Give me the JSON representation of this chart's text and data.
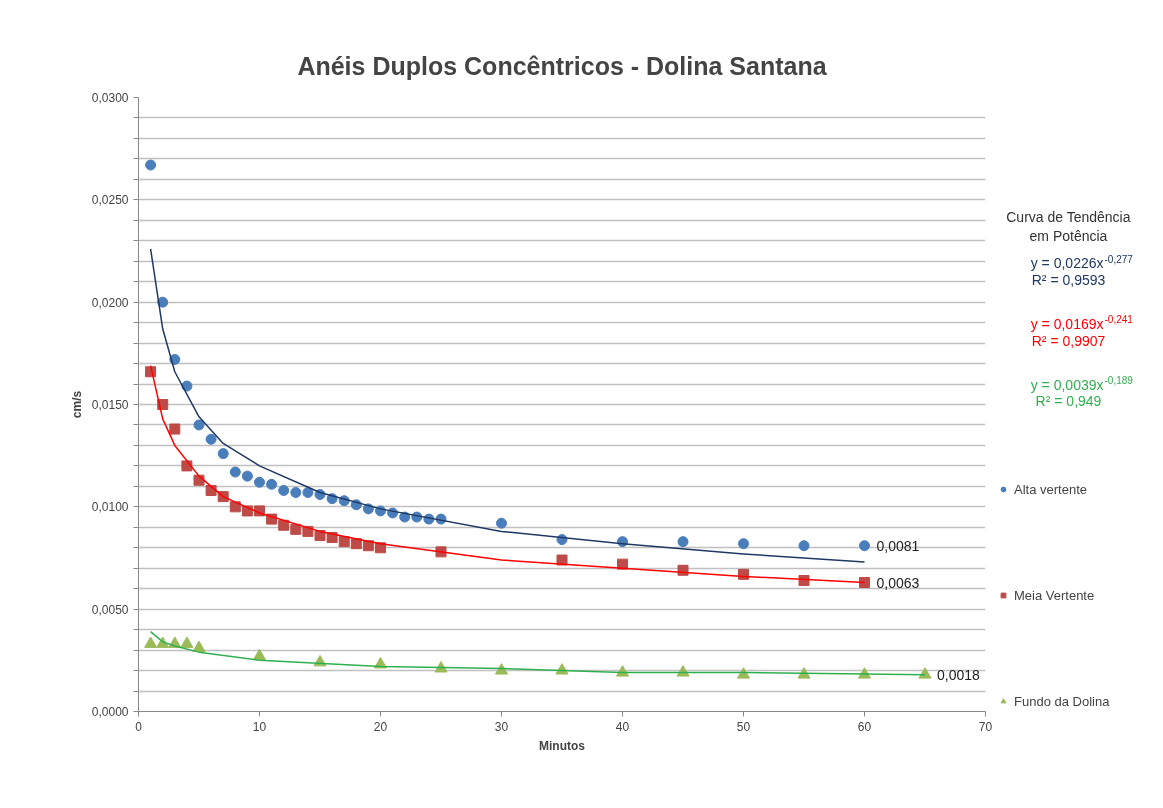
{
  "chart_data": {
    "type": "scatter",
    "title": "Anéis Duplos Concêntricos - Dolina Santana",
    "xlabel": "Minutos",
    "ylabel": "cm/s",
    "xlim": [
      0,
      70
    ],
    "ylim": [
      0,
      0.03
    ],
    "xticks": [
      0,
      10,
      20,
      30,
      40,
      50,
      60,
      70
    ],
    "yticks": [
      {
        "value": 0,
        "label": "0,0000"
      },
      {
        "value": 0.001,
        "label": null
      },
      {
        "value": 0.002,
        "label": null
      },
      {
        "value": 0.003,
        "label": null
      },
      {
        "value": 0.004,
        "label": null
      },
      {
        "value": 0.005,
        "label": "0,0050"
      },
      {
        "value": 0.006,
        "label": null
      },
      {
        "value": 0.007,
        "label": null
      },
      {
        "value": 0.008,
        "label": null
      },
      {
        "value": 0.009,
        "label": null
      },
      {
        "value": 0.01,
        "label": "0,0100"
      },
      {
        "value": 0.011,
        "label": null
      },
      {
        "value": 0.012,
        "label": null
      },
      {
        "value": 0.013,
        "label": null
      },
      {
        "value": 0.014,
        "label": null
      },
      {
        "value": 0.015,
        "label": "0,0150"
      },
      {
        "value": 0.016,
        "label": null
      },
      {
        "value": 0.017,
        "label": null
      },
      {
        "value": 0.018,
        "label": null
      },
      {
        "value": 0.019,
        "label": null
      },
      {
        "value": 0.02,
        "label": "0,0200"
      },
      {
        "value": 0.021,
        "label": null
      },
      {
        "value": 0.022,
        "label": null
      },
      {
        "value": 0.023,
        "label": null
      },
      {
        "value": 0.024,
        "label": null
      },
      {
        "value": 0.025,
        "label": "0,0250"
      },
      {
        "value": 0.026,
        "label": null
      },
      {
        "value": 0.027,
        "label": null
      },
      {
        "value": 0.028,
        "label": null
      },
      {
        "value": 0.029,
        "label": null
      },
      {
        "value": 0.03,
        "label": "0,0300"
      }
    ],
    "grid": "y",
    "legend": "right",
    "series": [
      {
        "name": "Alta vertente",
        "type": "scatter",
        "marker": "circle",
        "color": "#4a7ebb",
        "x": [
          1,
          2,
          3,
          4,
          5,
          6,
          7,
          8,
          9,
          10,
          11,
          12,
          13,
          14,
          15,
          16,
          17,
          18,
          19,
          20,
          21,
          22,
          23,
          24,
          25,
          30,
          35,
          40,
          45,
          50,
          55,
          60
        ],
        "values": [
          0.0267,
          0.02,
          0.0172,
          0.0159,
          0.014,
          0.0133,
          0.0126,
          0.0117,
          0.0115,
          0.0112,
          0.0111,
          0.0108,
          0.0107,
          0.0107,
          0.0106,
          0.0104,
          0.0103,
          0.0101,
          0.0099,
          0.0098,
          0.0097,
          0.0095,
          0.0095,
          0.0094,
          0.0094,
          0.0092,
          0.0084,
          0.0083,
          0.0083,
          0.0082,
          0.0081,
          0.0081
        ],
        "value_labels": [
          null,
          null,
          null,
          null,
          null,
          null,
          null,
          null,
          null,
          null,
          null,
          null,
          null,
          null,
          null,
          null,
          null,
          null,
          null,
          null,
          null,
          null,
          null,
          null,
          null,
          null,
          null,
          null,
          null,
          null,
          null,
          "0,0081"
        ]
      },
      {
        "name": "Meia Vertente",
        "type": "scatter",
        "marker": "square",
        "color": "#be4b48",
        "x": [
          1,
          2,
          3,
          4,
          5,
          6,
          7,
          8,
          9,
          10,
          11,
          12,
          13,
          14,
          15,
          16,
          17,
          18,
          19,
          20,
          25,
          35,
          40,
          45,
          50,
          55,
          60
        ],
        "values": [
          0.0166,
          0.015,
          0.0138,
          0.012,
          0.0113,
          0.0108,
          0.0105,
          0.01,
          0.0098,
          0.0098,
          0.0094,
          0.0091,
          0.0089,
          0.0088,
          0.0086,
          0.0085,
          0.0083,
          0.0082,
          0.0081,
          0.008,
          0.0078,
          0.0074,
          0.0072,
          0.0069,
          0.0067,
          0.0064,
          0.0063
        ],
        "value_labels": [
          null,
          null,
          null,
          null,
          null,
          null,
          null,
          null,
          null,
          null,
          null,
          null,
          null,
          null,
          null,
          null,
          null,
          null,
          null,
          null,
          null,
          null,
          null,
          null,
          null,
          null,
          "0,0063"
        ]
      },
      {
        "name": "Fundo da Dolina",
        "type": "scatter",
        "marker": "triangle",
        "color": "#9bbb59",
        "x": [
          1,
          2,
          3,
          4,
          5,
          10,
          15,
          20,
          25,
          30,
          35,
          40,
          45,
          50,
          55,
          60,
          65
        ],
        "values": [
          0.0033,
          0.0033,
          0.0033,
          0.0033,
          0.0031,
          0.0027,
          0.0024,
          0.0023,
          0.0021,
          0.002,
          0.002,
          0.0019,
          0.0019,
          0.0018,
          0.0018,
          0.0018,
          0.0018
        ],
        "value_labels": [
          null,
          null,
          null,
          null,
          null,
          null,
          null,
          null,
          null,
          null,
          null,
          null,
          null,
          null,
          null,
          null,
          "0,0018"
        ]
      },
      {
        "type": "line",
        "color": "#1f3864",
        "x": [
          1,
          2,
          3,
          5,
          7,
          10,
          15,
          20,
          30,
          40,
          50,
          60
        ],
        "values": [
          0.0226,
          0.0187,
          0.0166,
          0.0144,
          0.0131,
          0.012,
          0.0107,
          0.0099,
          0.0088,
          0.0082,
          0.0077,
          0.0073
        ]
      },
      {
        "type": "line",
        "color": "#ff0000",
        "x": [
          1,
          2,
          3,
          5,
          7,
          10,
          15,
          20,
          30,
          40,
          50,
          60
        ],
        "values": [
          0.0169,
          0.0143,
          0.013,
          0.0115,
          0.0105,
          0.0097,
          0.0088,
          0.0082,
          0.0074,
          0.007,
          0.0066,
          0.0063
        ]
      },
      {
        "type": "line",
        "color": "#2fb04f",
        "x": [
          1,
          2,
          3,
          5,
          10,
          20,
          30,
          40,
          50,
          65
        ],
        "values": [
          0.0039,
          0.0034,
          0.0032,
          0.0029,
          0.0025,
          0.0022,
          0.0021,
          0.0019,
          0.0019,
          0.0018
        ]
      }
    ],
    "annotations": [
      "Curva de Tendência\nem Potência",
      "y = 0,0226x$^{-0,277}$",
      "R² = 0,9593",
      "y = 0,0169x$^{-0,241}$",
      "R² = 0,9907",
      "y = 0,0039x$^{-0,189}$",
      "R² = 0,949"
    ]
  }
}
